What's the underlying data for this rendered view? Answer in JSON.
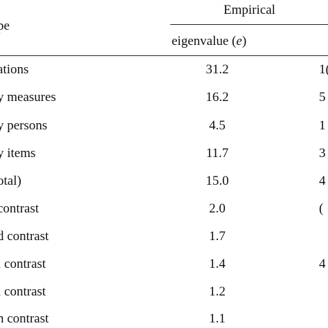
{
  "table": {
    "header": {
      "row_label": "pe",
      "group": "Empirical",
      "subheader_text": "eigenvalue (",
      "subheader_var": "e",
      "subheader_close": ")"
    },
    "rows": [
      {
        "label": "ations",
        "eigenvalue": "31.2",
        "next": "1("
      },
      {
        "label": "y measures",
        "eigenvalue": "16.2",
        "next": "5"
      },
      {
        "label": "y persons",
        "eigenvalue": "4.5",
        "next": "1"
      },
      {
        "label": "y items",
        "eigenvalue": "11.7",
        "next": "3"
      },
      {
        "label": "otal)",
        "eigenvalue": "15.0",
        "next": "4"
      },
      {
        "label": " contrast",
        "eigenvalue": "2.0",
        "next": "("
      },
      {
        "label": "d contrast",
        "eigenvalue": "1.7",
        "next": ""
      },
      {
        "label": "l contrast",
        "eigenvalue": "1.4",
        "next": "4"
      },
      {
        "label": "i contrast",
        "eigenvalue": "1.2",
        "next": ""
      },
      {
        "label": "n contrast",
        "eigenvalue": "1.1",
        "next": ""
      }
    ]
  }
}
